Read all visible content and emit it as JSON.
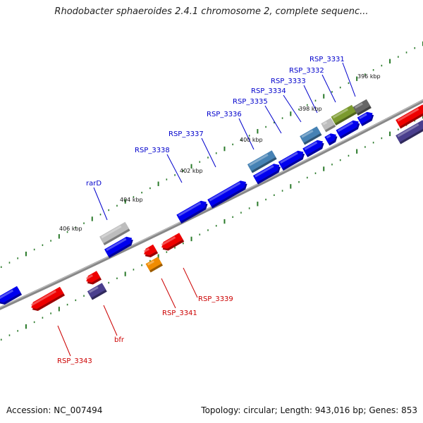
{
  "title": "Rhodobacter sphaeroides 2.4.1 chromosome 2, complete sequenc...",
  "footer": {
    "accession": "Accession: NC_007494",
    "summary": "Topology: circular; Length: 943,016 bp; Genes: 853"
  },
  "ruler_labels": [
    "396 kbp",
    "398 kbp",
    "400 kbp",
    "402 kbp",
    "404 kbp",
    "406 kbp"
  ],
  "forward_gene_labels": [
    "RSP_3331",
    "RSP_3332",
    "RSP_3333",
    "RSP_3334",
    "RSP_3335",
    "RSP_3336",
    "RSP_3337",
    "RSP_3338",
    "rarD"
  ],
  "reverse_gene_labels": [
    "RSP_3339",
    "RSP_3341",
    "bfr",
    "RSP_3343"
  ],
  "colors": {
    "forward": "#0000ee",
    "reverse": "#ee0000",
    "forward_label": "#0000cc",
    "reverse_label": "#cc0000",
    "backbone": "#888888",
    "ticks": "#2a7a2a",
    "steelblue": "#4682b4",
    "olive": "#7b9a2e",
    "slateblue": "#4a3f8e",
    "orange": "#f08c00",
    "silver": "#bdbdbd",
    "dimgray": "#666666"
  }
}
